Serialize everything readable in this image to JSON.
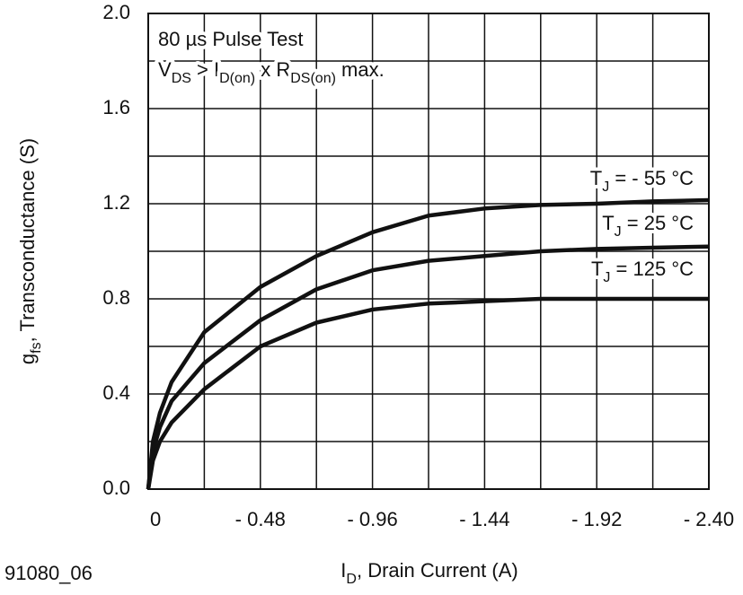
{
  "chart_data": {
    "type": "line",
    "annotation": [
      [
        {
          "text": "80 µs Pulse Test"
        }
      ],
      [
        {
          "text": "V"
        },
        {
          "text": "DS",
          "sub": true
        },
        {
          "text": " > I"
        },
        {
          "text": "D(on)",
          "sub": true
        },
        {
          "text": " x R"
        },
        {
          "text": "DS(on)",
          "sub": true
        },
        {
          "text": " max."
        }
      ]
    ],
    "xlabel": [
      {
        "text": "I"
      },
      {
        "text": "D",
        "sub": true
      },
      {
        "text": ", Drain Current (A)"
      }
    ],
    "ylabel": [
      {
        "text": "g"
      },
      {
        "text": "fs",
        "sub": true
      },
      {
        "text": ", Transconductance (S)"
      }
    ],
    "figure_id": "91080_06",
    "x": [
      0,
      -0.02,
      -0.05,
      -0.1,
      -0.24,
      -0.48,
      -0.72,
      -0.96,
      -1.2,
      -1.44,
      -1.68,
      -1.92,
      -2.16,
      -2.4
    ],
    "series": [
      {
        "name": [
          {
            "text": "T"
          },
          {
            "text": "J",
            "sub": true
          },
          {
            "text": " = - 55 °C"
          }
        ],
        "color": "#111111",
        "values": [
          0,
          0.2,
          0.32,
          0.45,
          0.66,
          0.85,
          0.98,
          1.08,
          1.15,
          1.18,
          1.195,
          1.2,
          1.21,
          1.215
        ]
      },
      {
        "name": [
          {
            "text": "T"
          },
          {
            "text": "J",
            "sub": true
          },
          {
            "text": " = 25 °C"
          }
        ],
        "color": "#111111",
        "values": [
          0,
          0.16,
          0.26,
          0.37,
          0.53,
          0.71,
          0.84,
          0.92,
          0.96,
          0.98,
          1.0,
          1.01,
          1.015,
          1.02
        ]
      },
      {
        "name": [
          {
            "text": "T"
          },
          {
            "text": "J",
            "sub": true
          },
          {
            "text": " = 125 °C"
          }
        ],
        "color": "#111111",
        "values": [
          0,
          0.12,
          0.2,
          0.28,
          0.42,
          0.6,
          0.7,
          0.755,
          0.78,
          0.79,
          0.8,
          0.8,
          0.8,
          0.8
        ]
      }
    ],
    "xlim": [
      0,
      -2.4
    ],
    "ylim": [
      0,
      2.0
    ],
    "xticks": [
      0,
      {
        "value": -0.48,
        "label": "- 0.48"
      },
      {
        "value": -0.96,
        "label": "- 0.96"
      },
      {
        "value": -1.44,
        "label": "- 1.44"
      },
      {
        "value": -1.92,
        "label": "- 1.92"
      },
      {
        "value": -2.4,
        "label": "- 2.40"
      }
    ],
    "yticks": [
      {
        "value": 0,
        "label": "0.0"
      },
      0.4,
      0.8,
      1.2,
      1.6,
      {
        "value": 2,
        "label": "2.0"
      }
    ],
    "xminor": [
      -0.24,
      -0.72,
      -1.2,
      -1.68,
      -2.16
    ],
    "yminor": [
      0.2,
      0.6,
      1.0,
      1.4,
      1.8
    ],
    "grid": true
  }
}
